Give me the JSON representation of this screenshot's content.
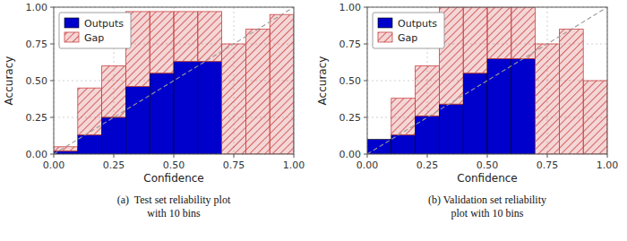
{
  "chart_data": [
    {
      "type": "histogram",
      "title": "(a)  Test set reliability plot\nwith 10 bins",
      "x_label": "Confidence",
      "y_label": "Accuracy",
      "bins": [
        0.0,
        0.1,
        0.2,
        0.3,
        0.4,
        0.5,
        0.6,
        0.7,
        0.8,
        0.9,
        1.0
      ],
      "series": [
        {
          "name": "Outputs",
          "color": "#0000CC",
          "values": [
            0.02,
            0.13,
            0.25,
            0.46,
            0.55,
            0.63,
            0.63,
            null,
            null,
            null
          ]
        },
        {
          "name": "Gap",
          "color": "#CC4444",
          "values": [
            0.03,
            0.32,
            0.35,
            0.51,
            0.42,
            0.34,
            0.34,
            0.75,
            0.85,
            0.95
          ]
        }
      ],
      "stacked": true,
      "xlim": [
        0,
        1
      ],
      "ylim": [
        0,
        1
      ],
      "xticks": [
        {
          "value": 0,
          "label": "0.00"
        },
        0.25,
        {
          "value": 0.5,
          "label": "0.50"
        },
        0.75,
        {
          "value": 1,
          "label": "1.00"
        }
      ],
      "yticks": [
        {
          "value": 0,
          "label": "0.00"
        },
        0.25,
        {
          "value": 0.5,
          "label": "0.50"
        },
        0.75,
        {
          "value": 1,
          "label": "1.00"
        }
      ],
      "grid": true,
      "legend": "upper left"
    },
    {
      "type": "histogram",
      "title": "(b) Validation set reliability\nplot with 10 bins",
      "x_label": "Confidence",
      "y_label": "Accuracy",
      "bins": [
        0.0,
        0.1,
        0.2,
        0.3,
        0.4,
        0.5,
        0.6,
        0.7,
        0.8,
        0.9,
        1.0
      ],
      "series": [
        {
          "name": "Outputs",
          "color": "#0000CC",
          "values": [
            0.1,
            0.13,
            0.26,
            0.34,
            0.55,
            0.65,
            0.65,
            null,
            null,
            null
          ]
        },
        {
          "name": "Gap",
          "color": "#CC4444",
          "values": [
            null,
            0.25,
            0.34,
            0.66,
            0.45,
            0.35,
            0.35,
            0.75,
            0.85,
            0.5
          ]
        }
      ],
      "stacked": true,
      "xlim": [
        0,
        1
      ],
      "ylim": [
        0,
        1
      ],
      "xticks": [
        {
          "value": 0,
          "label": "0.00"
        },
        0.25,
        {
          "value": 0.5,
          "label": "0.50"
        },
        0.75,
        {
          "value": 1,
          "label": "1.00"
        }
      ],
      "yticks": [
        {
          "value": 0,
          "label": "0.00"
        },
        0.25,
        {
          "value": 0.5,
          "label": "0.50"
        },
        0.75,
        {
          "value": 1,
          "label": "1.00"
        }
      ],
      "grid": true,
      "legend": "upper left"
    }
  ]
}
